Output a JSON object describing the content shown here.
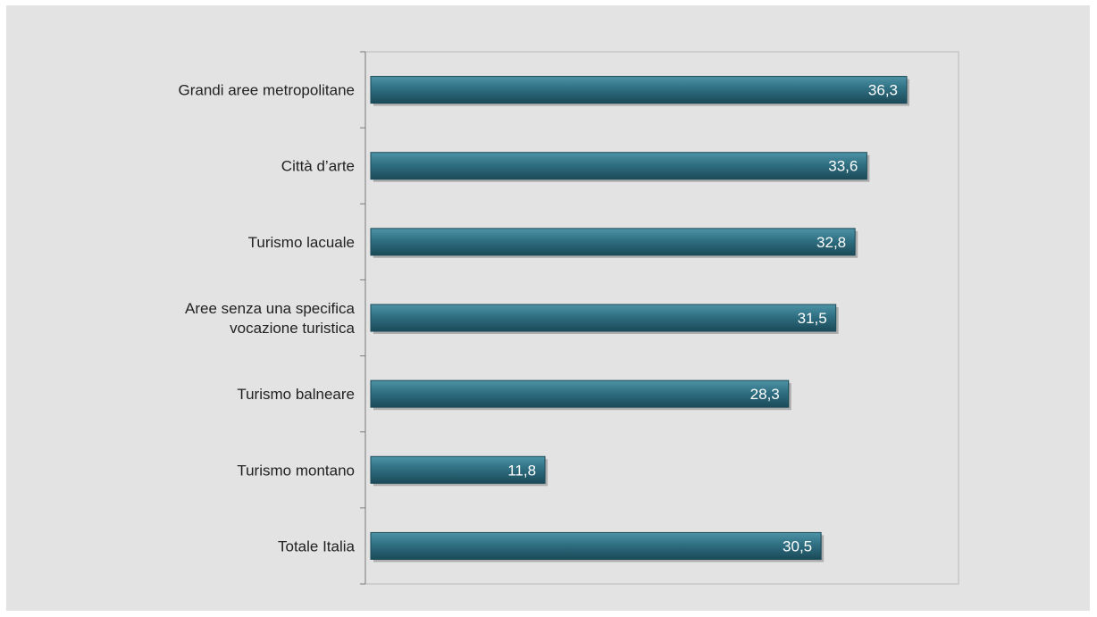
{
  "chart_data": {
    "type": "bar",
    "orientation": "horizontal",
    "categories": [
      [
        "Grandi aree metropolitane"
      ],
      [
        "Città d’arte"
      ],
      [
        "Turismo lacuale"
      ],
      [
        "Aree senza una specifica",
        "vocazione turistica"
      ],
      [
        "Turismo balneare"
      ],
      [
        "Turismo montano"
      ],
      [
        "Totale Italia"
      ]
    ],
    "values": [
      36.3,
      33.6,
      32.8,
      31.5,
      28.3,
      11.8,
      30.5
    ],
    "value_labels": [
      "36,3",
      "33,6",
      "32,8",
      "31,5",
      "28,3",
      "11,8",
      "30,5"
    ],
    "xlim": [
      0,
      40
    ],
    "grid": false,
    "bar_color": "#2f6f82",
    "bar_color_light": "#4e93a6",
    "bar_color_dark": "#1b4a58",
    "background_color": "#e3e3e4"
  }
}
